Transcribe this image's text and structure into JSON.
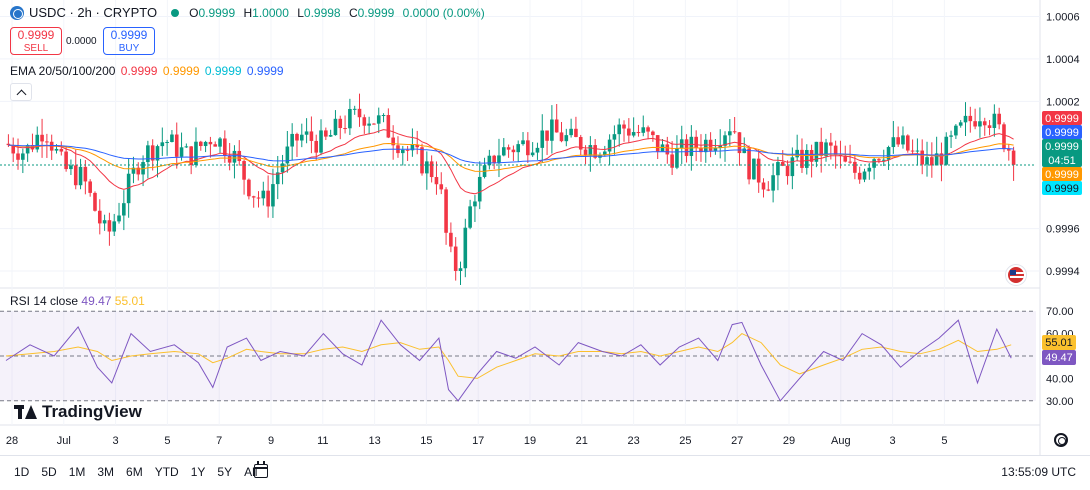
{
  "header": {
    "symbol": "USDC · 2h · CRYPTO",
    "ohlc": [
      {
        "label": "O",
        "value": "0.9999"
      },
      {
        "label": "H",
        "value": "1.0000"
      },
      {
        "label": "L",
        "value": "0.9998"
      },
      {
        "label": "C",
        "value": "0.9999"
      },
      {
        "label": "",
        "value": "0.0000 (0.00%)"
      }
    ]
  },
  "trade": {
    "sell_price": "0.9999",
    "sell_label": "SELL",
    "spread": "0.0000",
    "buy_price": "0.9999",
    "buy_label": "BUY"
  },
  "ema_legend": {
    "label": "EMA 20/50/100/200",
    "values": [
      {
        "value": "0.9999",
        "color": "#f23645"
      },
      {
        "value": "0.9999",
        "color": "#ff9800"
      },
      {
        "value": "0.9999",
        "color": "#00bcd4"
      },
      {
        "value": "0.9999",
        "color": "#2962ff"
      }
    ]
  },
  "rsi_legend": {
    "label": "RSI 14 close",
    "rsi": "49.47",
    "ma": "55.01"
  },
  "logo": "TradingView",
  "price_scale_ticks": [
    "1.0006",
    "1.0004",
    "1.0002",
    "0.9996",
    "0.9994"
  ],
  "price_tags": [
    {
      "text": "0.9999",
      "bg": "#f23645",
      "fg": "#ffffff"
    },
    {
      "text": "0.9999",
      "bg": "#2962ff",
      "fg": "#ffffff"
    },
    {
      "text": "0.9999",
      "sub": "04:51",
      "bg": "#089981",
      "fg": "#ffffff"
    },
    {
      "text": "0.9999",
      "bg": "#ff9800",
      "fg": "#ffffff"
    },
    {
      "text": "0.9999",
      "bg": "#00e5ff",
      "fg": "#131722"
    }
  ],
  "rsi_scale_ticks": [
    "70.00",
    "60.00",
    "40.00",
    "30.00"
  ],
  "rsi_tags": [
    {
      "text": "55.01",
      "bg": "#fbc02d",
      "fg": "#131722"
    },
    {
      "text": "49.47",
      "bg": "#7e57c2",
      "fg": "#ffffff"
    }
  ],
  "time_axis": [
    "28",
    "Jul",
    "3",
    "5",
    "7",
    "9",
    "11",
    "13",
    "15",
    "17",
    "19",
    "21",
    "23",
    "25",
    "27",
    "29",
    "Aug",
    "3",
    "5"
  ],
  "ranges": [
    "1D",
    "5D",
    "1M",
    "3M",
    "6M",
    "YTD",
    "1Y",
    "5Y",
    "All"
  ],
  "clock": "13:55:09 UTC",
  "colors": {
    "up": "#089981",
    "down": "#f23645",
    "rsi": "#7e57c2",
    "rsi_ma": "#fbc02d",
    "ema_fast": "#f23645",
    "ema_slow": "#2962ff"
  },
  "chart_data": [
    {
      "type": "candlestick",
      "title": "USDC · 2h · CRYPTO",
      "ylim": [
        0.99932,
        1.00064
      ],
      "current_price": 0.9999,
      "points": [
        [
          0,
          1.0
        ],
        [
          4,
          0.99996
        ],
        [
          8,
          1.00008
        ],
        [
          12,
          0.99988
        ],
        [
          16,
          0.99984
        ],
        [
          19,
          0.99966
        ],
        [
          21,
          0.99956
        ],
        [
          24,
          0.99972
        ],
        [
          28,
          0.99994
        ],
        [
          33,
          1.00002
        ],
        [
          38,
          0.99994
        ],
        [
          43,
          1.00004
        ],
        [
          47,
          0.99996
        ],
        [
          51,
          0.99978
        ],
        [
          54,
          0.99972
        ],
        [
          57,
          0.9999
        ],
        [
          61,
          1.00004
        ],
        [
          66,
          1.0
        ],
        [
          70,
          1.0001
        ],
        [
          74,
          1.00014
        ],
        [
          78,
          1.0001
        ],
        [
          82,
          1.0
        ],
        [
          86,
          0.99992
        ],
        [
          90,
          0.99984
        ],
        [
          92,
          0.99948
        ],
        [
          94,
          0.9994
        ],
        [
          97,
          0.99975
        ],
        [
          102,
          0.99996
        ],
        [
          108,
          1.0
        ],
        [
          113,
          1.00006
        ],
        [
          117,
          1.00002
        ],
        [
          123,
          0.99998
        ],
        [
          128,
          1.00008
        ],
        [
          133,
          1.00004
        ],
        [
          138,
          0.99994
        ],
        [
          142,
          0.99998
        ],
        [
          147,
          1.00002
        ],
        [
          151,
          1.0001
        ],
        [
          154,
          0.9999
        ],
        [
          158,
          0.99982
        ],
        [
          163,
          0.9999
        ],
        [
          167,
          0.99994
        ],
        [
          171,
          0.99998
        ],
        [
          174,
          0.9999
        ],
        [
          177,
          0.99986
        ],
        [
          180,
          0.99994
        ],
        [
          183,
          0.99998
        ],
        [
          186,
          1.0
        ],
        [
          189,
          0.99994
        ],
        [
          192,
          0.9999
        ],
        [
          195,
          0.99996
        ],
        [
          199,
          1.00008
        ],
        [
          203,
          1.00016
        ],
        [
          206,
          1.00008
        ],
        [
          209,
          0.99996
        ]
      ]
    },
    {
      "type": "line",
      "title": "RSI 14 close",
      "ylim": [
        25,
        75
      ],
      "levels": [
        70,
        50,
        30
      ],
      "series": [
        {
          "name": "RSI"
        },
        {
          "name": "MA"
        }
      ],
      "x": [
        0,
        5,
        10,
        15,
        19,
        22,
        26,
        30,
        35,
        40,
        43,
        46,
        50,
        53,
        57,
        62,
        66,
        70,
        74,
        78,
        82,
        86,
        90,
        92,
        94,
        98,
        102,
        106,
        110,
        115,
        119,
        124,
        128,
        132,
        136,
        140,
        144,
        148,
        151,
        153,
        157,
        161,
        165,
        170,
        174,
        178,
        182,
        186,
        190,
        194,
        198,
        202,
        206,
        209
      ],
      "rsi": [
        48,
        55,
        50,
        63,
        45,
        38,
        60,
        52,
        55,
        47,
        36,
        54,
        58,
        48,
        52,
        50,
        60,
        51,
        46,
        66,
        55,
        48,
        58,
        35,
        30,
        42,
        52,
        49,
        54,
        46,
        56,
        52,
        50,
        55,
        46,
        54,
        58,
        48,
        64,
        65,
        46,
        30,
        40,
        52,
        48,
        60,
        55,
        45,
        52,
        58,
        66,
        38,
        62,
        49
      ],
      "ma": [
        50,
        51,
        52,
        54,
        52,
        48,
        50,
        51,
        52,
        51,
        47,
        49,
        53,
        52,
        51,
        51,
        53,
        54,
        52,
        55,
        56,
        53,
        54,
        48,
        41,
        40,
        45,
        48,
        51,
        50,
        52,
        52,
        51,
        52,
        50,
        52,
        54,
        52,
        56,
        60,
        56,
        46,
        42,
        46,
        49,
        53,
        54,
        52,
        51,
        53,
        57,
        52,
        53,
        55
      ]
    }
  ]
}
